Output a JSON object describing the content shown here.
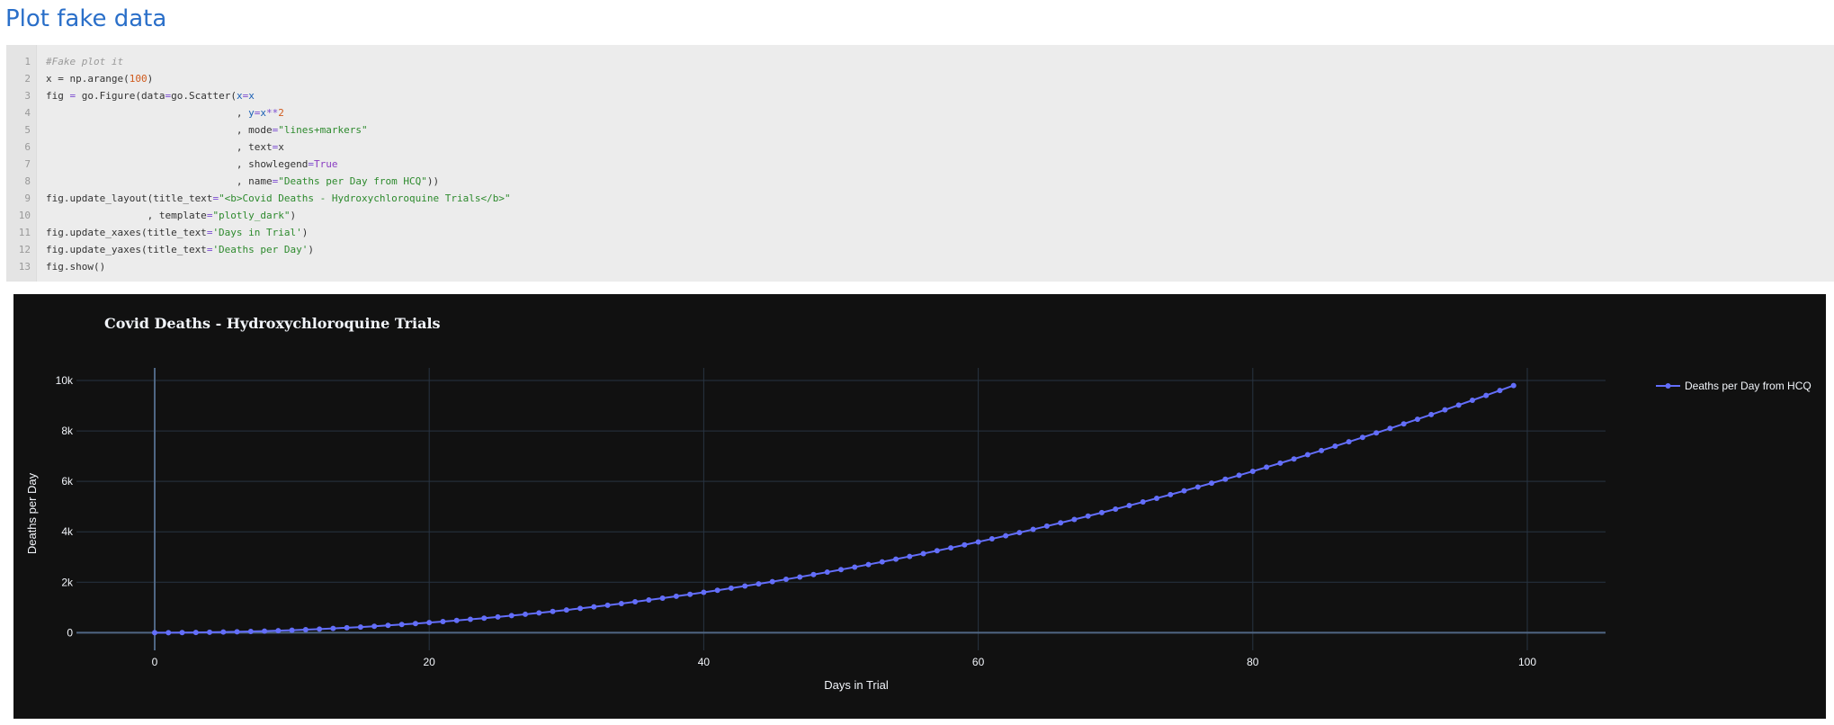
{
  "page": {
    "title": "Plot fake data"
  },
  "code": {
    "lines": [
      {
        "n": "1",
        "parts": [
          {
            "t": "#Fake plot it",
            "c": "cm"
          }
        ]
      },
      {
        "n": "2",
        "parts": [
          {
            "t": "x = np.arange(",
            "c": ""
          },
          {
            "t": "100",
            "c": "nu"
          },
          {
            "t": ")",
            "c": ""
          }
        ]
      },
      {
        "n": "3",
        "parts": [
          {
            "t": "fig ",
            "c": ""
          },
          {
            "t": "=",
            "c": "op"
          },
          {
            "t": " go.Figure(data",
            "c": ""
          },
          {
            "t": "=",
            "c": "op"
          },
          {
            "t": "go.Scatter(",
            "c": ""
          },
          {
            "t": "x",
            "c": "vr"
          },
          {
            "t": "=",
            "c": "op"
          },
          {
            "t": "x",
            "c": "vr"
          }
        ]
      },
      {
        "n": "4",
        "parts": [
          {
            "t": "                                , ",
            "c": ""
          },
          {
            "t": "y",
            "c": "vr"
          },
          {
            "t": "=",
            "c": "op"
          },
          {
            "t": "x",
            "c": "vr"
          },
          {
            "t": "**",
            "c": "op"
          },
          {
            "t": "2",
            "c": "nu"
          }
        ]
      },
      {
        "n": "5",
        "parts": [
          {
            "t": "                                , mode",
            "c": ""
          },
          {
            "t": "=",
            "c": "op"
          },
          {
            "t": "\"lines+markers\"",
            "c": "st"
          }
        ]
      },
      {
        "n": "6",
        "parts": [
          {
            "t": "                                , text",
            "c": ""
          },
          {
            "t": "=",
            "c": "op"
          },
          {
            "t": "x",
            "c": ""
          }
        ]
      },
      {
        "n": "7",
        "parts": [
          {
            "t": "                                , showlegend",
            "c": ""
          },
          {
            "t": "=",
            "c": "op"
          },
          {
            "t": "True",
            "c": "kw"
          }
        ]
      },
      {
        "n": "8",
        "parts": [
          {
            "t": "                                , name",
            "c": ""
          },
          {
            "t": "=",
            "c": "op"
          },
          {
            "t": "\"Deaths per Day from HCQ\"",
            "c": "st"
          },
          {
            "t": "))",
            "c": ""
          }
        ]
      },
      {
        "n": "9",
        "parts": [
          {
            "t": "fig.update_layout(title_text",
            "c": ""
          },
          {
            "t": "=",
            "c": "op"
          },
          {
            "t": "\"<b>Covid Deaths - Hydroxychloroquine Trials</b>\"",
            "c": "st"
          }
        ]
      },
      {
        "n": "10",
        "parts": [
          {
            "t": "                 , template",
            "c": ""
          },
          {
            "t": "=",
            "c": "op"
          },
          {
            "t": "\"plotly_dark\"",
            "c": "st"
          },
          {
            "t": ")",
            "c": ""
          }
        ]
      },
      {
        "n": "11",
        "parts": [
          {
            "t": "fig.update_xaxes(title_text",
            "c": ""
          },
          {
            "t": "=",
            "c": "op"
          },
          {
            "t": "'Days in Trial'",
            "c": "st"
          },
          {
            "t": ")",
            "c": ""
          }
        ]
      },
      {
        "n": "12",
        "parts": [
          {
            "t": "fig.update_yaxes(title_text",
            "c": ""
          },
          {
            "t": "=",
            "c": "op"
          },
          {
            "t": "'Deaths per Day'",
            "c": "st"
          },
          {
            "t": ")",
            "c": ""
          }
        ]
      },
      {
        "n": "13",
        "parts": [
          {
            "t": "fig.show()",
            "c": ""
          }
        ]
      }
    ]
  },
  "chart_data": {
    "type": "line",
    "title": "Covid Deaths - Hydroxychloroquine Trials",
    "xlabel": "Days in Trial",
    "ylabel": "Deaths per Day",
    "x_ticks": [
      0,
      20,
      40,
      60,
      80,
      100
    ],
    "x_tick_labels": [
      "0",
      "20",
      "40",
      "60",
      "80",
      "100"
    ],
    "y_ticks": [
      0,
      2000,
      4000,
      6000,
      8000,
      10000
    ],
    "y_tick_labels": [
      "0",
      "2k",
      "4k",
      "6k",
      "8k",
      "10k"
    ],
    "xlim": [
      -5.7,
      105.7
    ],
    "ylim": [
      -700,
      10500
    ],
    "grid": true,
    "legend_position": "top-right",
    "colors": {
      "background": "#111111",
      "series": "#636efa",
      "grid": "#283442",
      "text": "#f2f5fa"
    },
    "series": [
      {
        "name": "Deaths per Day from HCQ",
        "x": [
          0,
          1,
          2,
          3,
          4,
          5,
          6,
          7,
          8,
          9,
          10,
          11,
          12,
          13,
          14,
          15,
          16,
          17,
          18,
          19,
          20,
          21,
          22,
          23,
          24,
          25,
          26,
          27,
          28,
          29,
          30,
          31,
          32,
          33,
          34,
          35,
          36,
          37,
          38,
          39,
          40,
          41,
          42,
          43,
          44,
          45,
          46,
          47,
          48,
          49,
          50,
          51,
          52,
          53,
          54,
          55,
          56,
          57,
          58,
          59,
          60,
          61,
          62,
          63,
          64,
          65,
          66,
          67,
          68,
          69,
          70,
          71,
          72,
          73,
          74,
          75,
          76,
          77,
          78,
          79,
          80,
          81,
          82,
          83,
          84,
          85,
          86,
          87,
          88,
          89,
          90,
          91,
          92,
          93,
          94,
          95,
          96,
          97,
          98,
          99
        ],
        "y": [
          0,
          1,
          4,
          9,
          16,
          25,
          36,
          49,
          64,
          81,
          100,
          121,
          144,
          169,
          196,
          225,
          256,
          289,
          324,
          361,
          400,
          441,
          484,
          529,
          576,
          625,
          676,
          729,
          784,
          841,
          900,
          961,
          1024,
          1089,
          1156,
          1225,
          1296,
          1369,
          1444,
          1521,
          1600,
          1681,
          1764,
          1849,
          1936,
          2025,
          2116,
          2209,
          2304,
          2401,
          2500,
          2601,
          2704,
          2809,
          2916,
          3025,
          3136,
          3249,
          3364,
          3481,
          3600,
          3721,
          3844,
          3969,
          4096,
          4225,
          4356,
          4489,
          4624,
          4761,
          4900,
          5041,
          5184,
          5329,
          5476,
          5625,
          5776,
          5929,
          6084,
          6241,
          6400,
          6561,
          6724,
          6889,
          7056,
          7225,
          7396,
          7569,
          7744,
          7921,
          8100,
          8281,
          8464,
          8649,
          8836,
          9025,
          9216,
          9409,
          9604,
          9801
        ]
      }
    ]
  }
}
